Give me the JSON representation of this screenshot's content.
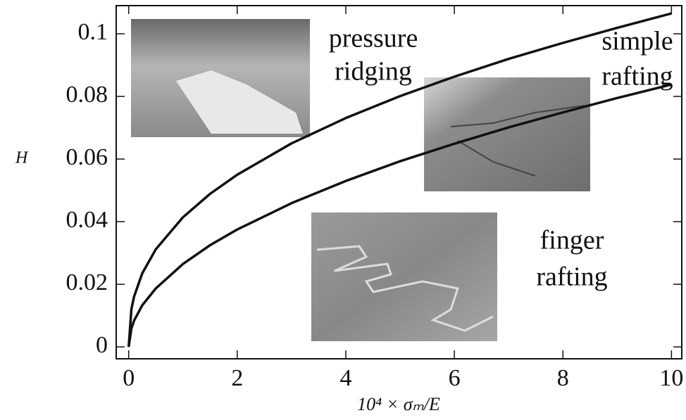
{
  "chart_data": {
    "type": "line",
    "xlabel": "10⁴ × σₘ/E",
    "ylabel": "H",
    "x": [
      0,
      0.05,
      0.1,
      0.25,
      0.5,
      1,
      1.5,
      2,
      3,
      4,
      5,
      6,
      7,
      8,
      9,
      10
    ],
    "series": [
      {
        "color": "#111111",
        "values": [
          0,
          0.0121,
          0.0161,
          0.0235,
          0.0312,
          0.0414,
          0.0489,
          0.055,
          0.065,
          0.0731,
          0.0801,
          0.0863,
          0.092,
          0.0971,
          0.1019,
          0.1065
        ]
      },
      {
        "color": "#111111",
        "values": [
          0,
          0.0059,
          0.0084,
          0.0133,
          0.0187,
          0.0265,
          0.0325,
          0.0375,
          0.0459,
          0.053,
          0.0593,
          0.0649,
          0.0701,
          0.0749,
          0.0795,
          0.0838
        ]
      }
    ],
    "xlim": [
      -0.23,
      10.19
    ],
    "ylim": [
      -0.0038,
      0.109
    ],
    "xticks": [
      0,
      2,
      4,
      6,
      8,
      10
    ],
    "yticks": [
      0,
      0.02,
      0.04,
      0.06,
      0.08,
      0.1
    ],
    "annotations": [
      [
        "pressure",
        "ridging"
      ],
      [
        "simple",
        "rafting"
      ],
      [
        "finger",
        "rafting"
      ]
    ]
  }
}
